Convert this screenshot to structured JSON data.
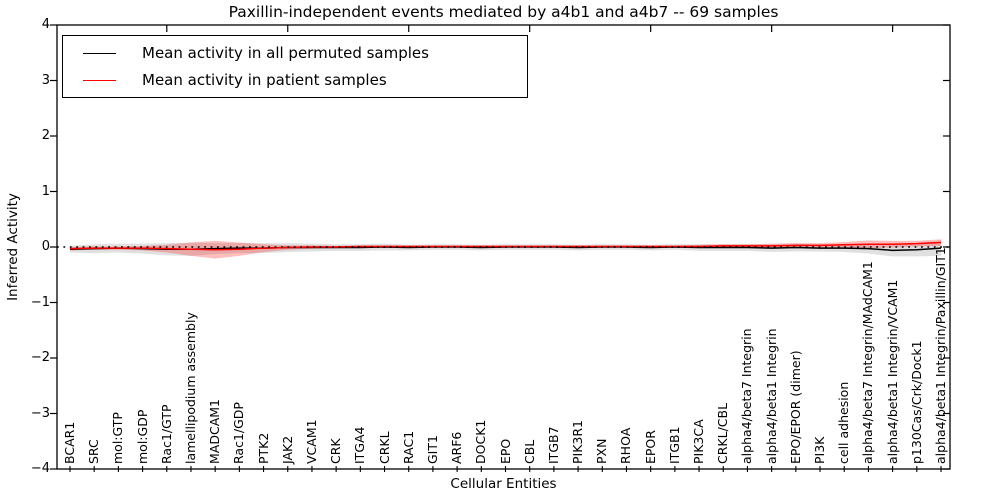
{
  "chart_data": {
    "type": "line",
    "title": "Paxillin-independent events mediated by a4b1 and a4b7 -- 69 samples",
    "xlabel": "Cellular Entities",
    "ylabel": "Inferred Activity",
    "ylim": [
      -4,
      4
    ],
    "yticks": [
      -4,
      -3,
      -2,
      -1,
      0,
      1,
      2,
      3,
      4
    ],
    "x_major_tick_every": 5,
    "grid": false,
    "legend_position": "upper left",
    "zero_line": {
      "style": "dotted",
      "color": "#000000",
      "y": 0
    },
    "categories": [
      "BCAR1",
      "SRC",
      "mol:GTP",
      "mol:GDP",
      "Rac1/GTP",
      "lamellipodium assembly",
      "MADCAM1",
      "Rac1/GDP",
      "PTK2",
      "JAK2",
      "VCAM1",
      "CRK",
      "ITGA4",
      "CRKL",
      "RAC1",
      "GIT1",
      "ARF6",
      "DOCK1",
      "EPO",
      "CBL",
      "ITGB7",
      "PIK3R1",
      "PXN",
      "RHOA",
      "EPOR",
      "ITGB1",
      "PIK3CA",
      "CRKL/CBL",
      "alpha4/beta7 Integrin",
      "alpha4/beta1 Integrin",
      "EPO/EPOR (dimer)",
      "PI3K",
      "cell adhesion",
      "alpha4/beta7 Integrin/MAdCAM1",
      "alpha4/beta1 Integrin/VCAM1",
      "p130Cas/Crk/Dock1",
      "alpha4/beta1 Integrin/Paxillin/GIT1"
    ],
    "series": [
      {
        "name": "Mean activity in all permuted samples",
        "color": "#000000",
        "band_color": "#999999",
        "band_opacity": 0.3,
        "mean": [
          -0.04,
          -0.03,
          -0.02,
          -0.03,
          -0.04,
          -0.04,
          -0.03,
          -0.02,
          -0.02,
          -0.01,
          -0.01,
          -0.01,
          -0.01,
          0.0,
          -0.01,
          0.0,
          0.0,
          -0.01,
          0.0,
          0.0,
          0.0,
          -0.01,
          0.0,
          0.0,
          -0.01,
          0.0,
          -0.01,
          -0.01,
          -0.01,
          -0.02,
          -0.01,
          -0.02,
          -0.02,
          -0.03,
          -0.06,
          -0.05,
          -0.02
        ],
        "std": [
          0.06,
          0.08,
          0.08,
          0.09,
          0.11,
          0.12,
          0.1,
          0.09,
          0.09,
          0.08,
          0.07,
          0.06,
          0.06,
          0.06,
          0.05,
          0.05,
          0.05,
          0.05,
          0.05,
          0.05,
          0.05,
          0.05,
          0.05,
          0.05,
          0.05,
          0.05,
          0.06,
          0.06,
          0.06,
          0.07,
          0.07,
          0.06,
          0.07,
          0.09,
          0.11,
          0.12,
          0.14
        ]
      },
      {
        "name": "Mean activity in patient samples",
        "color": "#ff0000",
        "band_color": "#ff0000",
        "band_opacity": 0.25,
        "mean": [
          -0.03,
          -0.02,
          -0.02,
          -0.02,
          -0.03,
          -0.04,
          -0.05,
          -0.04,
          -0.02,
          -0.01,
          0.0,
          0.0,
          0.01,
          0.01,
          0.01,
          0.01,
          0.01,
          0.01,
          0.01,
          0.01,
          0.01,
          0.01,
          0.01,
          0.01,
          0.01,
          0.01,
          0.01,
          0.02,
          0.02,
          0.02,
          0.03,
          0.03,
          0.04,
          0.05,
          0.05,
          0.06,
          0.08
        ],
        "std": [
          0.03,
          0.03,
          0.03,
          0.04,
          0.07,
          0.12,
          0.16,
          0.12,
          0.07,
          0.04,
          0.03,
          0.02,
          0.02,
          0.02,
          0.02,
          0.02,
          0.02,
          0.02,
          0.02,
          0.02,
          0.02,
          0.02,
          0.02,
          0.02,
          0.02,
          0.02,
          0.03,
          0.03,
          0.03,
          0.04,
          0.04,
          0.04,
          0.05,
          0.07,
          0.06,
          0.05,
          0.06
        ]
      }
    ]
  },
  "legend": {
    "items": [
      {
        "label": "Mean activity in all permuted samples",
        "color": "#000000"
      },
      {
        "label": "Mean activity in patient samples",
        "color": "#ff0000"
      }
    ]
  }
}
